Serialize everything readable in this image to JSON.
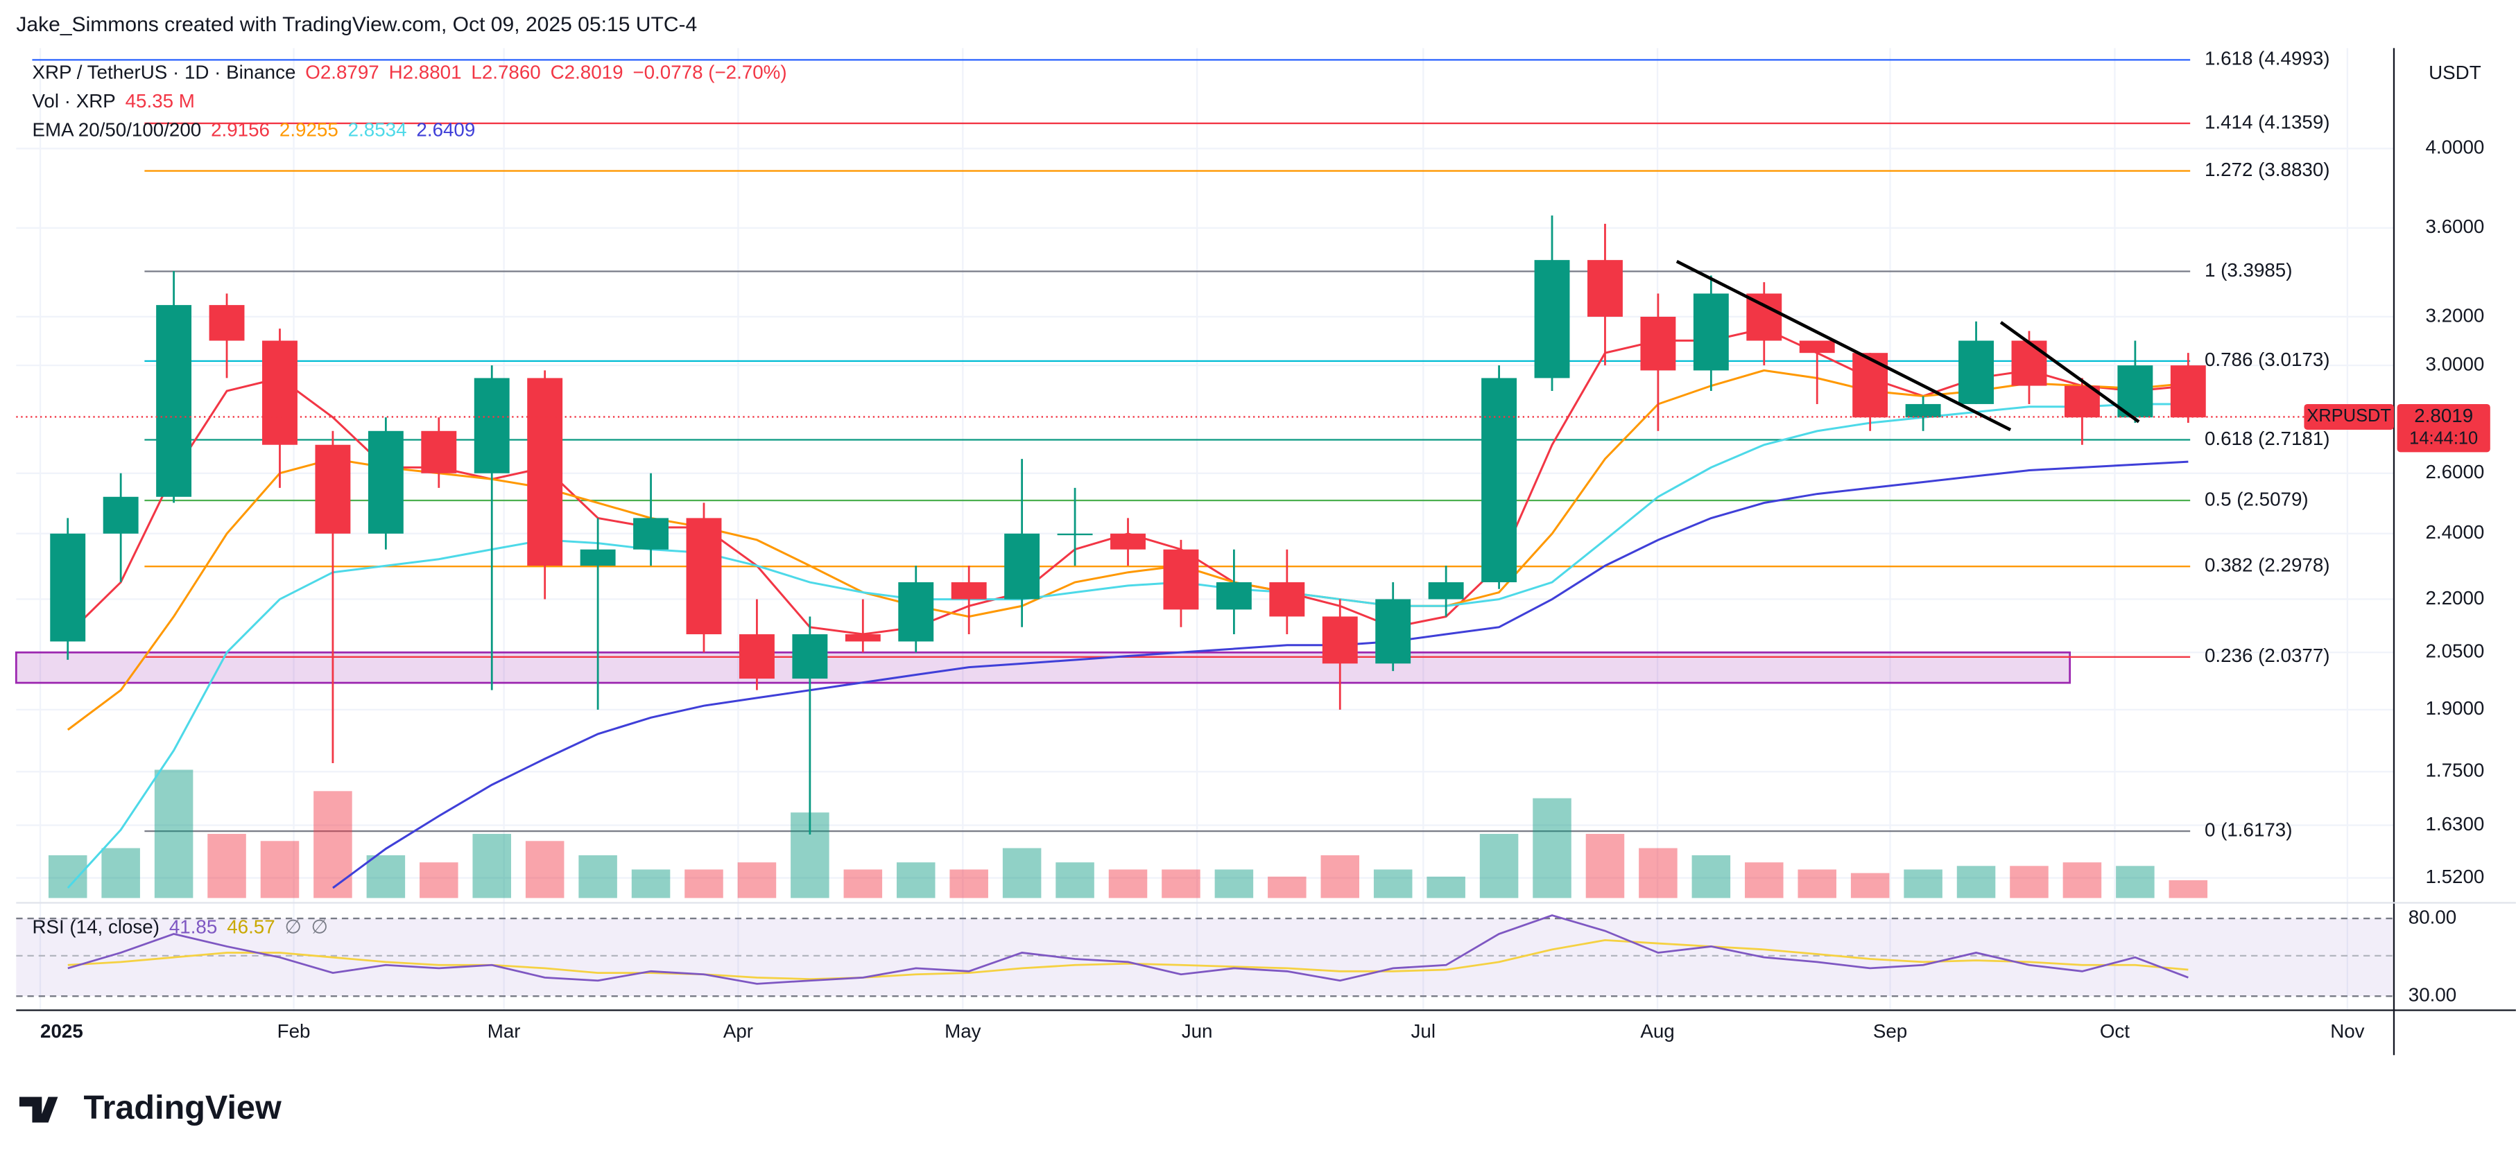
{
  "header": {
    "credit": "Jake_Simmons created with TradingView.com, Oct 09, 2025 05:15 UTC-4",
    "symbol": "XRP / TetherUS · 1D · Binance",
    "ohlc": [
      "O2.8797",
      "H2.8801",
      "L2.7860",
      "C2.8019",
      "−0.0778 (−2.70%)"
    ],
    "vol_label": "Vol · XRP",
    "vol_value": "45.35 M",
    "ema_label": "EMA 20/50/100/200",
    "ema_values": [
      "2.9156",
      "2.9255",
      "2.8534",
      "2.6409"
    ],
    "rsi_label": "RSI (14, close)",
    "rsi_values": [
      "41.85",
      "46.57",
      "∅",
      "∅"
    ],
    "currency": "USDT",
    "brand": "TradingView"
  },
  "chart_data": {
    "type": "candlestick",
    "log_scale": true,
    "grid": true,
    "x_labels": [
      "2025",
      "Feb",
      "Mar",
      "Apr",
      "May",
      "Jun",
      "Jul",
      "Aug",
      "Sep",
      "Oct",
      "Nov"
    ],
    "ylim": [
      1.48,
      4.57
    ],
    "yticks": [
      {
        "value": 4,
        "label": "4.0000"
      },
      {
        "value": 3.6,
        "label": "3.6000"
      },
      {
        "value": 3.2,
        "label": "3.2000"
      },
      {
        "value": 3,
        "label": "3.0000"
      },
      {
        "value": 2.6,
        "label": "2.6000"
      },
      {
        "value": 2.4,
        "label": "2.4000"
      },
      {
        "value": 2.2,
        "label": "2.2000"
      },
      {
        "value": 2.05,
        "label": "2.0500"
      },
      {
        "value": 1.9,
        "label": "1.9000"
      },
      {
        "value": 1.75,
        "label": "1.7500"
      },
      {
        "value": 1.63,
        "label": "1.6300"
      },
      {
        "value": 1.52,
        "label": "1.5200"
      }
    ],
    "up_color": "#089981",
    "down_color": "#f23645",
    "candles": {
      "open": [
        2.08,
        2.4,
        2.52,
        3.25,
        3.1,
        2.7,
        2.4,
        2.75,
        2.6,
        2.95,
        2.3,
        2.35,
        2.45,
        2.1,
        1.98,
        2.1,
        2.08,
        2.25,
        2.2,
        2.4,
        2.4,
        2.35,
        2.17,
        2.25,
        2.15,
        2.02,
        2.2,
        2.25,
        2.95,
        3.45,
        3.2,
        2.98,
        3.3,
        3.1,
        3.05,
        2.8,
        2.85,
        3.1,
        2.92,
        2.8,
        3.0
      ],
      "high": [
        2.45,
        2.6,
        3.4,
        3.3,
        3.15,
        2.75,
        2.8,
        2.8,
        3.0,
        2.98,
        2.45,
        2.6,
        2.5,
        2.2,
        2.15,
        2.2,
        2.3,
        2.3,
        2.65,
        2.55,
        2.45,
        2.38,
        2.35,
        2.35,
        2.2,
        2.25,
        2.3,
        3.0,
        3.66,
        3.62,
        3.3,
        3.38,
        3.35,
        3.1,
        3.05,
        2.88,
        3.18,
        3.14,
        2.95,
        3.1,
        3.05
      ],
      "low": [
        2.03,
        2.25,
        2.5,
        2.95,
        2.55,
        1.77,
        2.35,
        2.55,
        1.95,
        2.2,
        1.9,
        2.3,
        2.05,
        1.95,
        1.61,
        2.05,
        2.05,
        2.1,
        2.12,
        2.3,
        2.3,
        2.12,
        2.1,
        2.1,
        1.9,
        2.0,
        2.15,
        2.23,
        2.9,
        3.0,
        2.75,
        2.9,
        3.0,
        2.85,
        2.75,
        2.75,
        2.85,
        2.85,
        2.7,
        2.78,
        2.78
      ],
      "close": [
        2.4,
        2.52,
        3.25,
        3.1,
        2.7,
        2.4,
        2.75,
        2.6,
        2.95,
        2.3,
        2.35,
        2.45,
        2.1,
        1.98,
        2.1,
        2.08,
        2.25,
        2.2,
        2.4,
        2.4,
        2.35,
        2.17,
        2.25,
        2.15,
        2.02,
        2.2,
        2.25,
        2.95,
        3.45,
        3.2,
        2.98,
        3.3,
        3.1,
        3.05,
        2.8,
        2.85,
        3.1,
        2.92,
        2.8,
        3.0,
        2.8
      ]
    },
    "volume": [
      600,
      700,
      1800,
      900,
      800,
      1500,
      600,
      500,
      900,
      800,
      600,
      400,
      400,
      500,
      1200,
      400,
      500,
      400,
      700,
      500,
      400,
      400,
      400,
      300,
      600,
      400,
      300,
      900,
      1400,
      900,
      700,
      600,
      500,
      400,
      350,
      400,
      450,
      450,
      500,
      450,
      250
    ],
    "series": [
      {
        "color": "#f23645",
        "values": [
          2.1,
          2.25,
          2.6,
          2.9,
          2.95,
          2.8,
          2.62,
          2.62,
          2.58,
          2.62,
          2.45,
          2.42,
          2.42,
          2.3,
          2.12,
          2.1,
          2.12,
          2.18,
          2.22,
          2.35,
          2.4,
          2.35,
          2.25,
          2.22,
          2.18,
          2.12,
          2.15,
          2.3,
          2.7,
          3.05,
          3.1,
          3.1,
          3.15,
          3.05,
          2.95,
          2.88,
          2.95,
          2.98,
          2.92,
          2.9,
          2.92
        ]
      },
      {
        "color": "#ff9800",
        "values": [
          1.85,
          1.95,
          2.15,
          2.4,
          2.6,
          2.65,
          2.62,
          2.6,
          2.58,
          2.55,
          2.5,
          2.45,
          2.42,
          2.38,
          2.3,
          2.22,
          2.18,
          2.15,
          2.18,
          2.25,
          2.28,
          2.3,
          2.25,
          2.22,
          2.2,
          2.18,
          2.18,
          2.22,
          2.4,
          2.65,
          2.85,
          2.92,
          2.98,
          2.95,
          2.9,
          2.88,
          2.9,
          2.93,
          2.92,
          2.91,
          2.93
        ]
      },
      {
        "color": "#4dd9e8",
        "values": [
          1.5,
          1.62,
          1.8,
          2.05,
          2.2,
          2.28,
          2.3,
          2.32,
          2.35,
          2.38,
          2.37,
          2.35,
          2.34,
          2.3,
          2.25,
          2.22,
          2.2,
          2.2,
          2.2,
          2.22,
          2.24,
          2.25,
          2.23,
          2.22,
          2.2,
          2.18,
          2.18,
          2.2,
          2.25,
          2.38,
          2.52,
          2.62,
          2.7,
          2.75,
          2.78,
          2.8,
          2.82,
          2.84,
          2.84,
          2.85,
          2.85
        ]
      },
      {
        "color": "#3f3fd8",
        "values": [
          null,
          null,
          null,
          null,
          null,
          1.5,
          1.58,
          1.65,
          1.72,
          1.78,
          1.84,
          1.88,
          1.91,
          1.93,
          1.95,
          1.97,
          1.99,
          2.01,
          2.02,
          2.03,
          2.04,
          2.05,
          2.06,
          2.07,
          2.07,
          2.08,
          2.1,
          2.12,
          2.2,
          2.3,
          2.38,
          2.45,
          2.5,
          2.53,
          2.55,
          2.57,
          2.59,
          2.61,
          2.62,
          2.63,
          2.64
        ]
      }
    ],
    "fib": [
      {
        "label": "1.618 (4.4993)",
        "value": 4.4993,
        "color": "#2962ff"
      },
      {
        "label": "1.414 (4.1359)",
        "value": 4.1359,
        "color": "#f23645"
      },
      {
        "label": "1.272 (3.8830)",
        "value": 3.883,
        "color": "#ff9800"
      },
      {
        "label": "1 (3.3985)",
        "value": 3.3985,
        "color": "#787b86"
      },
      {
        "label": "0.786 (3.0173)",
        "value": 3.0173,
        "color": "#00bcd4"
      },
      {
        "label": "0.618 (2.7181)",
        "value": 2.7181,
        "color": "#089981"
      },
      {
        "label": "0.5 (2.5079)",
        "value": 2.5079,
        "color": "#4caf50"
      },
      {
        "label": "0.382 (2.2978)",
        "value": 2.2978,
        "color": "#ff9800"
      },
      {
        "label": "0.236 (2.0377)",
        "value": 2.0377,
        "color": "#f23645"
      },
      {
        "label": "0 (1.6173)",
        "value": 1.6173,
        "color": "#787b86"
      }
    ],
    "zone": {
      "low": 1.969,
      "high": 2.05,
      "color": "#9c27b0"
    },
    "last": {
      "symbol": "XRPUSDT",
      "price": 2.8019,
      "countdown": "14:44:10",
      "color": "#f23645"
    },
    "rsi": {
      "ylim": [
        23,
        88
      ],
      "yticks": [
        {
          "value": 80,
          "label": "80.00"
        },
        {
          "value": 30,
          "label": "30.00"
        }
      ],
      "color": "#7e57c2",
      "ma_color": "#f5d142",
      "values": [
        48,
        58,
        70,
        62,
        55,
        45,
        50,
        48,
        50,
        42,
        40,
        46,
        44,
        38,
        40,
        42,
        48,
        46,
        58,
        54,
        52,
        44,
        48,
        46,
        40,
        48,
        50,
        70,
        82,
        72,
        58,
        62,
        55,
        52,
        48,
        50,
        58,
        50,
        46,
        55,
        42
      ],
      "ma": [
        50,
        52,
        55,
        58,
        58,
        55,
        52,
        50,
        50,
        48,
        45,
        45,
        44,
        42,
        41,
        42,
        44,
        45,
        48,
        50,
        51,
        50,
        49,
        48,
        46,
        46,
        47,
        52,
        60,
        66,
        64,
        62,
        60,
        57,
        54,
        52,
        53,
        52,
        50,
        50,
        47
      ]
    }
  }
}
